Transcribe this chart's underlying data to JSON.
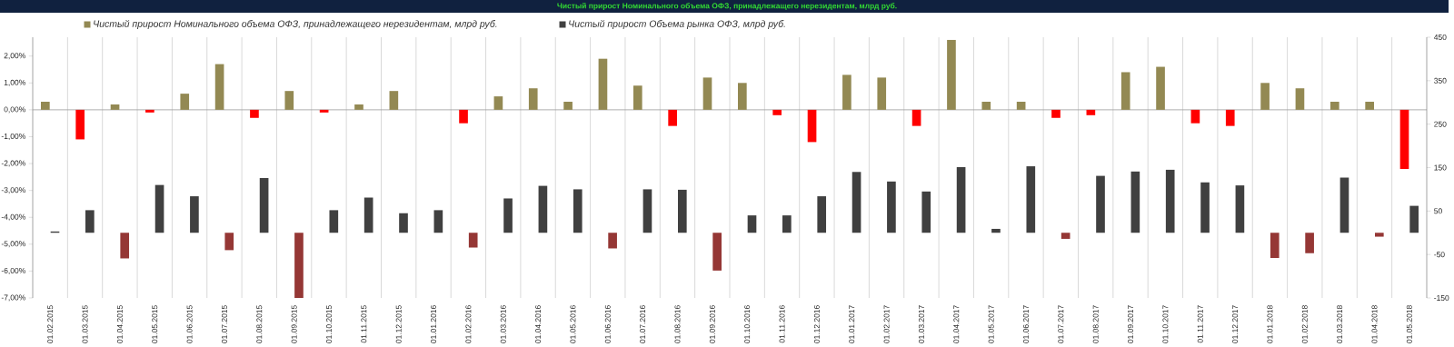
{
  "chart_data": {
    "type": "bar",
    "title": "Чистый прирост Номинального объема ОФЗ, принадлежащего нерезидентам, млрд руб.",
    "categories": [
      "01.02.2015",
      "01.03.2015",
      "01.04.2015",
      "01.05.2015",
      "01.06.2015",
      "01.07.2015",
      "01.08.2015",
      "01.09.2015",
      "01.10.2015",
      "01.11.2015",
      "01.12.2015",
      "01.01.2016",
      "01.02.2016",
      "01.03.2016",
      "01.04.2016",
      "01.05.2016",
      "01.06.2016",
      "01.07.2016",
      "01.08.2016",
      "01.09.2016",
      "01.10.2016",
      "01.11.2016",
      "01.12.2016",
      "01.01.2017",
      "01.02.2017",
      "01.03.2017",
      "01.04.2017",
      "01.05.2017",
      "01.06.2017",
      "01.07.2017",
      "01.08.2017",
      "01.09.2017",
      "01.10.2017",
      "01.11.2017",
      "01.12.2017",
      "01.01.2018",
      "01.02.2018",
      "01.03.2018",
      "01.04.2018",
      "01.05.2018"
    ],
    "series": [
      {
        "name": "Чистый прирост Номинального объема ОФЗ, принадлежащего нерезидентам, млрд руб.",
        "color": "#938953",
        "values": [
          0.3,
          -1.1,
          0.2,
          -0.1,
          0.6,
          1.7,
          -0.3,
          0.7,
          -0.1,
          0.2,
          0.7,
          0,
          -0.5,
          0.5,
          0.8,
          0.3,
          1.9,
          0.9,
          -0.6,
          1.2,
          1.0,
          -0.2,
          -1.2,
          1.3,
          1.2,
          -0.6,
          2.6,
          0.3,
          0.3,
          -0.3,
          -0.2,
          1.4,
          1.6,
          -0.5,
          -0.6,
          1.0,
          0.8,
          0.3,
          0.3,
          -2.2
        ],
        "colors": [
          "#938953",
          "#ff0000",
          "#938953",
          "#ff0000",
          "#938953",
          "#938953",
          "#ff0000",
          "#938953",
          "#ff0000",
          "#938953",
          "#938953",
          "#938953",
          "#ff0000",
          "#938953",
          "#938953",
          "#938953",
          "#938953",
          "#938953",
          "#ff0000",
          "#938953",
          "#938953",
          "#ff0000",
          "#ff0000",
          "#938953",
          "#938953",
          "#ff0000",
          "#938953",
          "#938953",
          "#938953",
          "#ff0000",
          "#ff0000",
          "#938953",
          "#938953",
          "#ff0000",
          "#ff0000",
          "#938953",
          "#938953",
          "#938953",
          "#938953",
          "#ff0000"
        ]
      },
      {
        "name": "Чистый прирост Объема рынка ОФЗ, млрд руб.",
        "color": "#404040",
        "axis": "y2",
        "values": [
          3,
          52,
          -59,
          110,
          84,
          -40,
          126,
          -150,
          52,
          81,
          45,
          52,
          -34,
          79,
          108,
          100,
          -36,
          100,
          99,
          -87,
          40,
          40,
          84,
          140,
          118,
          95,
          151,
          9,
          153,
          -14,
          131,
          141,
          145,
          116,
          109,
          -58,
          -47,
          127,
          -9,
          62
        ],
        "colors": [
          "#404040",
          "#404040",
          "#953735",
          "#404040",
          "#404040",
          "#953735",
          "#404040",
          "#953735",
          "#404040",
          "#404040",
          "#404040",
          "#404040",
          "#953735",
          "#404040",
          "#404040",
          "#404040",
          "#953735",
          "#404040",
          "#404040",
          "#953735",
          "#404040",
          "#404040",
          "#404040",
          "#404040",
          "#404040",
          "#404040",
          "#404040",
          "#404040",
          "#404040",
          "#953735",
          "#404040",
          "#404040",
          "#404040",
          "#404040",
          "#404040",
          "#953735",
          "#953735",
          "#404040",
          "#953735",
          "#404040"
        ]
      }
    ],
    "ylim": [
      -7,
      2.7
    ],
    "yticks": [
      {
        "value": -7,
        "label": "-7,00%"
      },
      {
        "value": -6,
        "label": "-6,00%"
      },
      {
        "value": -5,
        "label": "-5,00%"
      },
      {
        "value": -4,
        "label": "-4,00%"
      },
      {
        "value": -3,
        "label": "-3,00%"
      },
      {
        "value": -2,
        "label": "-2,00%"
      },
      {
        "value": -1,
        "label": "-1,00%"
      },
      {
        "value": 0,
        "label": "0,00%"
      },
      {
        "value": 1,
        "label": "1,00%"
      },
      {
        "value": 2,
        "label": "2,00%"
      }
    ],
    "y2lim": [
      -150,
      450
    ],
    "y2ticks": [
      -150,
      -50,
      50,
      150,
      250,
      350,
      450
    ],
    "grid": "x",
    "legend": "top"
  }
}
